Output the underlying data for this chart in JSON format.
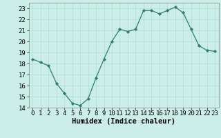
{
  "x": [
    0,
    1,
    2,
    3,
    4,
    5,
    6,
    7,
    8,
    9,
    10,
    11,
    12,
    13,
    14,
    15,
    16,
    17,
    18,
    19,
    20,
    21,
    22,
    23
  ],
  "y": [
    18.4,
    18.1,
    17.8,
    16.2,
    15.3,
    14.4,
    14.2,
    14.8,
    16.7,
    18.4,
    20.0,
    21.1,
    20.9,
    21.1,
    22.8,
    22.8,
    22.5,
    22.8,
    23.1,
    22.6,
    21.1,
    19.6,
    19.2,
    19.1
  ],
  "line_color": "#2e7d6e",
  "marker_color": "#2e7d6e",
  "bg_color": "#cceee8",
  "grid_color": "#aaddcc",
  "xlabel": "Humidex (Indice chaleur)",
  "ylim": [
    14,
    23.5
  ],
  "xlim": [
    -0.5,
    23.5
  ],
  "yticks": [
    14,
    15,
    16,
    17,
    18,
    19,
    20,
    21,
    22,
    23
  ],
  "xticks": [
    0,
    1,
    2,
    3,
    4,
    5,
    6,
    7,
    8,
    9,
    10,
    11,
    12,
    13,
    14,
    15,
    16,
    17,
    18,
    19,
    20,
    21,
    22,
    23
  ],
  "tick_fontsize": 6.5,
  "label_fontsize": 7.5
}
